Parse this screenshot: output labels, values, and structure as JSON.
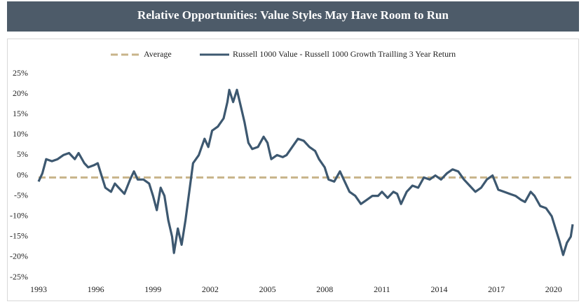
{
  "chart_data": {
    "type": "line",
    "title": "Relative Opportunities: Value Styles May Have Room to Run",
    "x": [
      1993.0,
      1993.2,
      1993.4,
      1993.7,
      1994.0,
      1994.3,
      1994.6,
      1994.9,
      1995.1,
      1995.4,
      1995.6,
      1995.9,
      1996.1,
      1996.3,
      1996.5,
      1996.8,
      1997.0,
      1997.2,
      1997.5,
      1997.8,
      1998.0,
      1998.2,
      1998.5,
      1998.8,
      1999.0,
      1999.2,
      1999.4,
      1999.6,
      1999.8,
      2000.0,
      2000.1,
      2000.3,
      2000.5,
      2000.7,
      2000.9,
      2001.1,
      2001.4,
      2001.7,
      2001.9,
      2002.1,
      2002.4,
      2002.7,
      2002.9,
      2003.0,
      2003.2,
      2003.4,
      2003.6,
      2003.8,
      2004.0,
      2004.2,
      2004.5,
      2004.8,
      2005.0,
      2005.2,
      2005.5,
      2005.8,
      2006.0,
      2006.3,
      2006.6,
      2006.9,
      2007.2,
      2007.5,
      2007.7,
      2008.0,
      2008.2,
      2008.5,
      2008.8,
      2009.0,
      2009.3,
      2009.6,
      2009.9,
      2010.2,
      2010.5,
      2010.8,
      2011.0,
      2011.3,
      2011.6,
      2011.8,
      2012.0,
      2012.3,
      2012.6,
      2012.9,
      2013.2,
      2013.5,
      2013.8,
      2014.1,
      2014.4,
      2014.7,
      2015.0,
      2015.3,
      2015.6,
      2015.9,
      2016.2,
      2016.5,
      2016.8,
      2017.1,
      2017.4,
      2017.7,
      2018.0,
      2018.3,
      2018.5,
      2018.8,
      2019.0,
      2019.3,
      2019.6,
      2019.9,
      2020.1,
      2020.3,
      2020.5,
      2020.7,
      2020.9,
      2021.0
    ],
    "series": [
      {
        "name": "Average",
        "color": "#c8b48a",
        "dashed": true,
        "x": [
          1993,
          2021
        ],
        "values": [
          -0.5,
          -0.5
        ]
      },
      {
        "name": "Russell 1000 Value - Russell 1000 Growth Trailling 3 Year Return",
        "color": "#3d5870",
        "dashed": false,
        "values": [
          -1.5,
          0.5,
          4,
          3.5,
          4,
          5,
          5.5,
          4,
          5.5,
          3,
          2,
          2.5,
          3,
          0,
          -3,
          -4,
          -2,
          -3,
          -4.5,
          -1,
          1,
          -1,
          -1,
          -2,
          -5,
          -8.5,
          -3,
          -5,
          -11,
          -15,
          -19,
          -13,
          -17,
          -11,
          -4,
          3,
          5,
          9,
          7,
          11,
          12,
          14,
          18,
          21,
          18,
          21,
          17,
          13,
          8,
          6.5,
          7,
          9.5,
          8,
          4,
          5,
          4.5,
          5,
          7,
          9,
          8.5,
          7,
          6,
          4,
          2,
          -1,
          -1.5,
          1,
          -1,
          -4,
          -5,
          -7,
          -6,
          -5,
          -5,
          -4,
          -5.5,
          -4,
          -4.5,
          -7,
          -4,
          -2.5,
          -3,
          -0.5,
          -1,
          0,
          -1,
          0.5,
          1.5,
          1,
          -1,
          -2.5,
          -4,
          -3,
          -1,
          0,
          -3.5,
          -4,
          -4.5,
          -5,
          -6,
          -6.5,
          -4,
          -5,
          -7.5,
          -8,
          -10,
          -13,
          -16,
          -19.5,
          -16.5,
          -15,
          -12
        ]
      }
    ],
    "xlim": [
      1993,
      2021
    ],
    "xticks": [
      1993,
      1996,
      1999,
      2002,
      2005,
      2008,
      2011,
      2014,
      2017,
      2020
    ],
    "ylim": [
      -25,
      25
    ],
    "yticks": [
      {
        "value": 25,
        "label": "25%"
      },
      {
        "value": 20,
        "label": "20%"
      },
      {
        "value": 15,
        "label": "15%"
      },
      {
        "value": 10,
        "label": "10%"
      },
      {
        "value": 5,
        "label": "5%"
      },
      {
        "value": 0,
        "label": "0%"
      },
      {
        "value": -5,
        "label": "-5%"
      },
      {
        "value": -10,
        "label": "-10%"
      },
      {
        "value": -15,
        "label": "-15%"
      },
      {
        "value": -20,
        "label": "-20%"
      },
      {
        "value": -25,
        "label": "-25%"
      }
    ],
    "grid": false,
    "legend": "top"
  }
}
